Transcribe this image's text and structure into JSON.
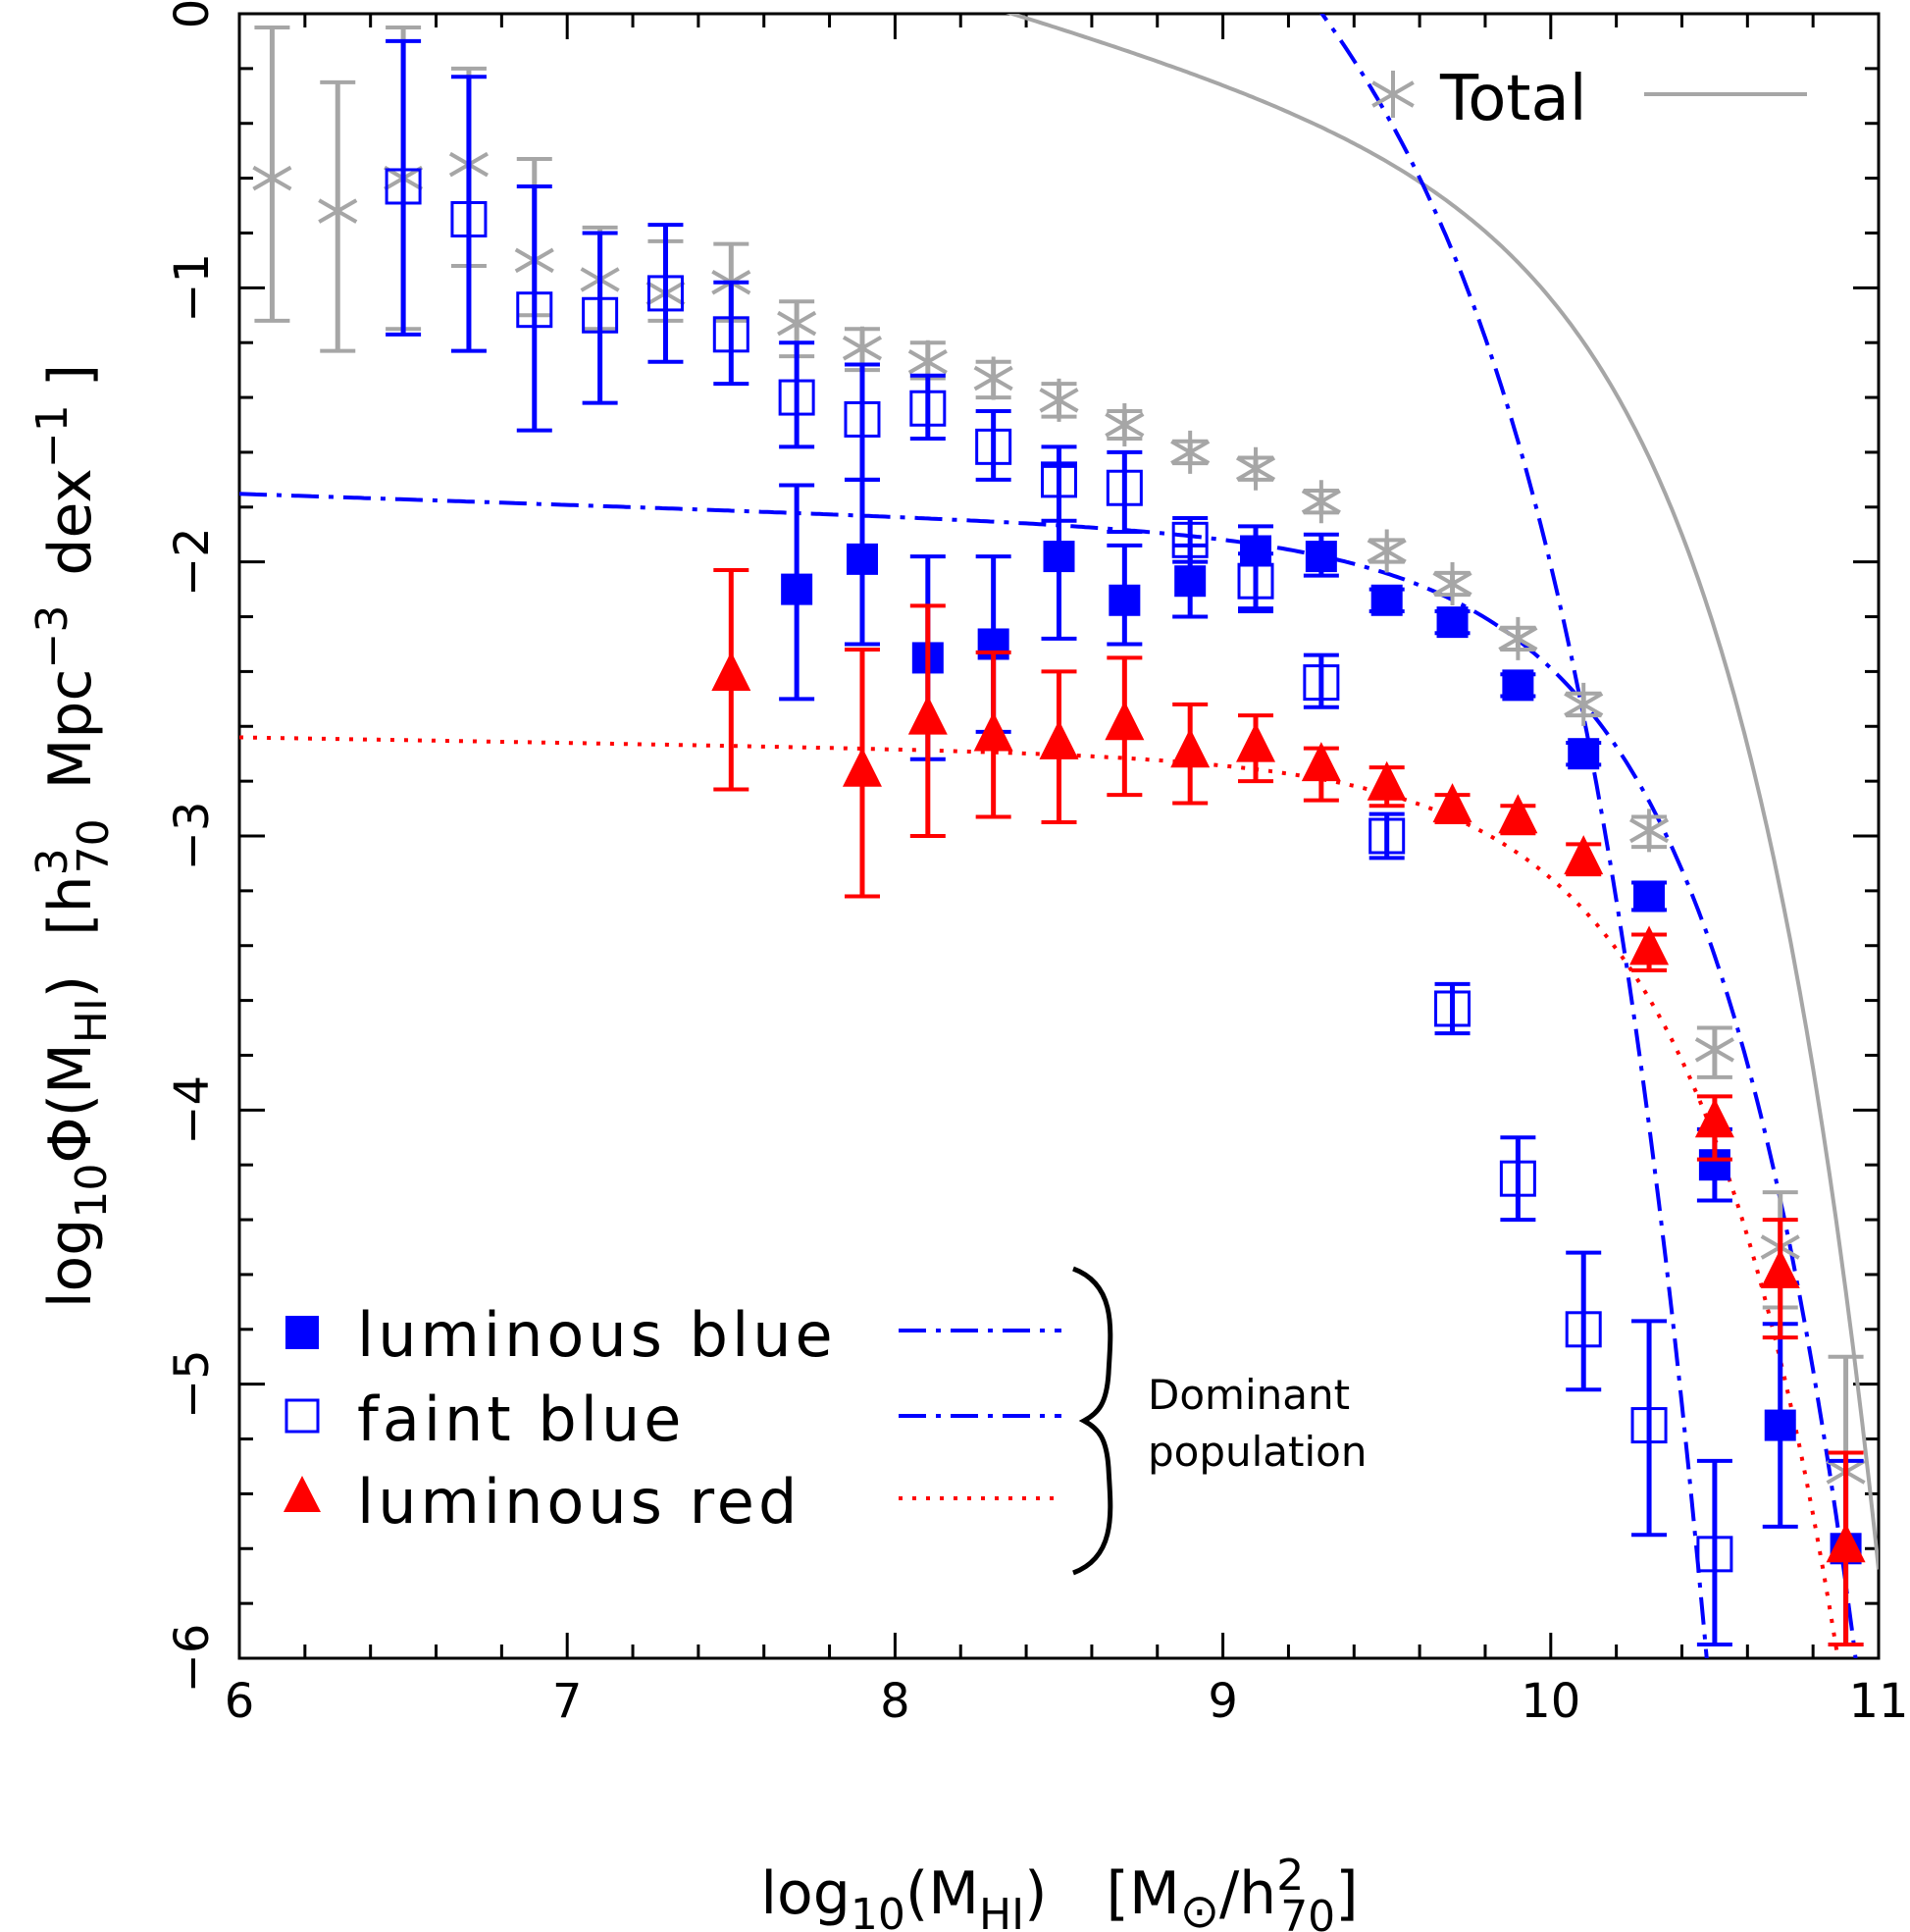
{
  "chart_data": {
    "type": "scatter",
    "xlabel": {
      "prefix": "log",
      "sub1": "10",
      "open": "(M",
      "sub2": "HI",
      "close": ")",
      "units_open": "[M",
      "sun": "⊙",
      "units_mid": "/h",
      "sup": "2",
      "sub3": "70",
      "units_close": "]"
    },
    "ylabel": {
      "prefix": "log",
      "sub1": "10",
      "phi": "Φ(M",
      "sub2": "HI",
      "close": ")",
      "units_open": "[h",
      "sup1": "3",
      "sub3": "70",
      "mpc": "Mpc",
      "sup2": "−3",
      "dex": "dex",
      "sup3": "−1",
      "units_close": "]"
    },
    "xlim": [
      6,
      11
    ],
    "ylim": [
      -6,
      0
    ],
    "x_ticks": [
      6,
      7,
      8,
      9,
      10,
      11
    ],
    "x_tick_labels": [
      "6",
      "7",
      "8",
      "9",
      "10",
      "11"
    ],
    "y_ticks": [
      0,
      -1,
      -2,
      -3,
      -4,
      -5,
      -6
    ],
    "y_tick_labels": [
      "0",
      "−1",
      "−2",
      "−3",
      "−4",
      "−5",
      "−6"
    ],
    "colors": {
      "total": "#a6a6a6",
      "blue": "#0000ff",
      "red": "#ff0000",
      "axis": "#000000"
    },
    "series": [
      {
        "name": "Total",
        "marker": "asterisk",
        "color": "#a6a6a6",
        "x": [
          6.1,
          6.3,
          6.5,
          6.7,
          6.9,
          7.1,
          7.3,
          7.5,
          7.7,
          7.9,
          8.1,
          8.3,
          8.5,
          8.7,
          8.9,
          9.1,
          9.3,
          9.5,
          9.7,
          9.9,
          10.1,
          10.3,
          10.5,
          10.7,
          10.9
        ],
        "y": [
          -0.6,
          -0.72,
          -0.6,
          -0.55,
          -0.9,
          -0.97,
          -1.02,
          -0.98,
          -1.13,
          -1.22,
          -1.27,
          -1.33,
          -1.41,
          -1.5,
          -1.6,
          -1.66,
          -1.78,
          -1.96,
          -2.08,
          -2.28,
          -2.52,
          -2.98,
          -3.78,
          -4.5,
          -5.32
        ],
        "ylow": [
          -1.12,
          -1.23,
          -1.15,
          -0.92,
          -1.1,
          -1.15,
          -1.12,
          -1.12,
          -1.25,
          -1.3,
          -1.33,
          -1.4,
          -1.47,
          -1.55,
          -1.64,
          -1.7,
          -1.82,
          -2.0,
          -2.12,
          -2.32,
          -2.56,
          -3.04,
          -3.88,
          -4.72,
          -5.95
        ],
        "yhigh": [
          -0.05,
          -0.25,
          -0.05,
          -0.2,
          -0.53,
          -0.78,
          -0.83,
          -0.84,
          -1.05,
          -1.15,
          -1.2,
          -1.27,
          -1.35,
          -1.45,
          -1.56,
          -1.62,
          -1.74,
          -1.92,
          -2.04,
          -2.24,
          -2.48,
          -2.93,
          -3.7,
          -4.3,
          -4.9
        ]
      },
      {
        "name": "luminous blue",
        "marker": "filled-square",
        "color": "#0000ff",
        "x": [
          7.7,
          7.9,
          8.1,
          8.3,
          8.5,
          8.7,
          8.9,
          9.1,
          9.3,
          9.5,
          9.7,
          9.9,
          10.1,
          10.3,
          10.5,
          10.7,
          10.9
        ],
        "y": [
          -2.1,
          -1.99,
          -2.35,
          -2.3,
          -1.98,
          -2.14,
          -2.07,
          -1.96,
          -1.98,
          -2.14,
          -2.22,
          -2.45,
          -2.7,
          -3.22,
          -4.2,
          -5.15,
          -5.6
        ],
        "ylow": [
          -2.5,
          -2.3,
          -2.72,
          -2.62,
          -2.28,
          -2.3,
          -2.2,
          -2.17,
          -2.05,
          -2.18,
          -2.26,
          -2.49,
          -2.74,
          -3.27,
          -4.33,
          -5.52,
          -5.95
        ],
        "yhigh": [
          -1.72,
          -1.7,
          -1.98,
          -1.98,
          -1.65,
          -1.94,
          -1.94,
          -1.87,
          -1.9,
          -2.1,
          -2.18,
          -2.41,
          -2.66,
          -3.17,
          -4.07,
          -4.78,
          -5.28
        ]
      },
      {
        "name": "faint blue",
        "marker": "open-square",
        "color": "#0000ff",
        "x": [
          6.5,
          6.7,
          6.9,
          7.1,
          7.3,
          7.5,
          7.7,
          7.9,
          8.1,
          8.3,
          8.5,
          8.7,
          8.9,
          9.1,
          9.3,
          9.5,
          9.7,
          9.9,
          10.1,
          10.3,
          10.5
        ],
        "y": [
          -0.63,
          -0.75,
          -1.08,
          -1.1,
          -1.02,
          -1.17,
          -1.4,
          -1.48,
          -1.44,
          -1.58,
          -1.7,
          -1.73,
          -1.92,
          -2.07,
          -2.44,
          -3.0,
          -3.63,
          -4.25,
          -4.8,
          -5.15,
          -5.62
        ],
        "ylow": [
          -1.17,
          -1.23,
          -1.52,
          -1.42,
          -1.27,
          -1.35,
          -1.58,
          -1.7,
          -1.55,
          -1.7,
          -1.85,
          -1.89,
          -2.0,
          -2.18,
          -2.53,
          -3.08,
          -3.72,
          -4.4,
          -5.02,
          -5.55,
          -5.95
        ],
        "yhigh": [
          -0.1,
          -0.23,
          -0.63,
          -0.8,
          -0.77,
          -0.98,
          -1.2,
          -1.28,
          -1.32,
          -1.45,
          -1.58,
          -1.6,
          -1.84,
          -1.97,
          -2.34,
          -2.92,
          -3.54,
          -4.1,
          -4.52,
          -4.77,
          -5.28
        ]
      },
      {
        "name": "luminous red",
        "marker": "filled-triangle",
        "color": "#ff0000",
        "x": [
          7.5,
          7.9,
          8.1,
          8.3,
          8.5,
          8.7,
          8.9,
          9.1,
          9.3,
          9.5,
          9.7,
          9.9,
          10.1,
          10.3,
          10.5,
          10.7,
          10.9
        ],
        "y": [
          -2.42,
          -2.77,
          -2.58,
          -2.64,
          -2.67,
          -2.6,
          -2.7,
          -2.68,
          -2.75,
          -2.82,
          -2.9,
          -2.94,
          -3.09,
          -3.42,
          -4.05,
          -4.6,
          -5.6
        ],
        "ylow": [
          -2.83,
          -3.22,
          -3.0,
          -2.93,
          -2.95,
          -2.85,
          -2.88,
          -2.8,
          -2.87,
          -2.89,
          -2.95,
          -2.99,
          -3.14,
          -3.49,
          -4.18,
          -4.83,
          -5.95
        ],
        "yhigh": [
          -2.03,
          -2.32,
          -2.16,
          -2.33,
          -2.4,
          -2.35,
          -2.52,
          -2.56,
          -2.68,
          -2.75,
          -2.85,
          -2.89,
          -3.03,
          -3.36,
          -3.95,
          -4.4,
          -5.25
        ]
      }
    ],
    "fits": [
      {
        "name": "Total",
        "style": "solid",
        "color": "#a6a6a6",
        "theta": -0.55,
        "alpha": -1.35,
        "logMstar": 9.96
      },
      {
        "name": "luminous blue",
        "style": "dashdot",
        "color": "#0000ff",
        "theta": -1.91,
        "alpha": -1.04,
        "logMstar": 9.96
      },
      {
        "name": "faint blue",
        "style": "dashdot",
        "color": "#0000ff",
        "theta": 0.3,
        "alpha": -1.81,
        "logMstar": 9.38
      },
      {
        "name": "luminous red",
        "style": "dotted",
        "color": "#ff0000",
        "theta": -2.72,
        "alpha": -1.02,
        "logMstar": 10.0
      }
    ],
    "legend": {
      "top_right": {
        "label": "Total"
      },
      "bottom_left": [
        {
          "label": "luminous blue"
        },
        {
          "label": "faint blue"
        },
        {
          "label": "luminous red"
        }
      ],
      "bracket_text_1": "Dominant",
      "bracket_text_2": "population"
    }
  }
}
